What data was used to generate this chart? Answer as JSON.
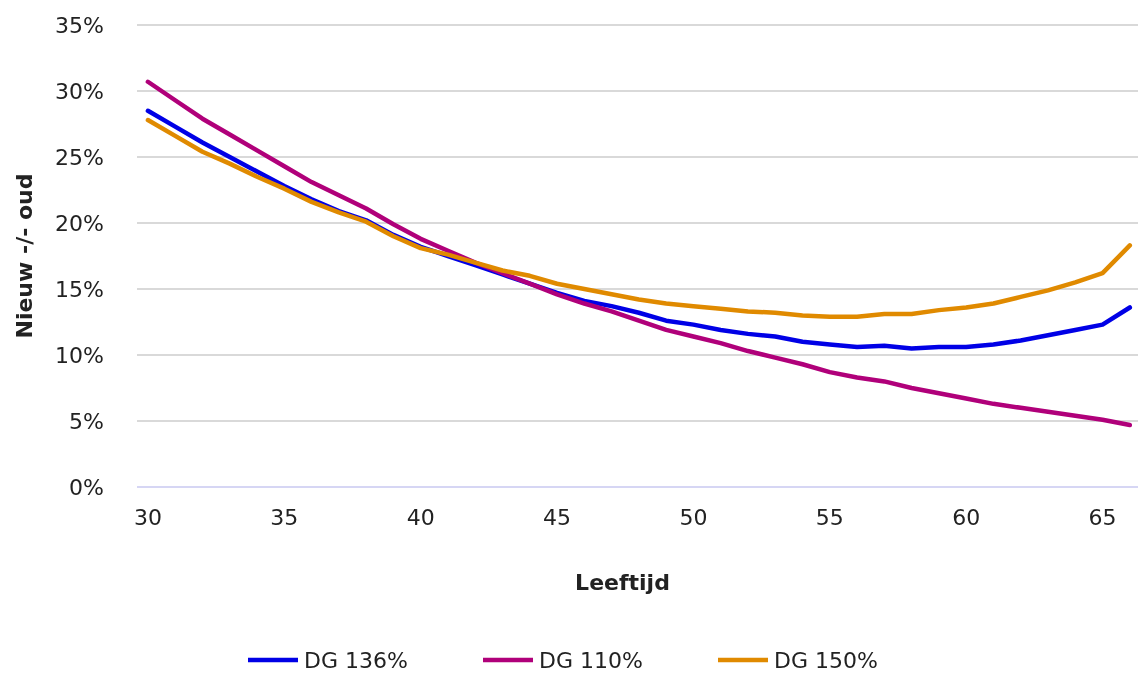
{
  "chart_data": {
    "type": "line",
    "xlabel": "Leeftijd",
    "ylabel": "Nieuw -/- oud",
    "x": [
      30,
      31,
      32,
      33,
      34,
      35,
      36,
      37,
      38,
      39,
      40,
      41,
      42,
      43,
      44,
      45,
      46,
      47,
      48,
      49,
      50,
      51,
      52,
      53,
      54,
      55,
      56,
      57,
      58,
      59,
      60,
      61,
      62,
      63,
      64,
      65,
      66
    ],
    "series": [
      {
        "name": "DG 136%",
        "color": "#0000e6",
        "values": [
          28.5,
          27.3,
          26.1,
          25.0,
          23.9,
          22.8,
          21.8,
          20.9,
          20.2,
          19.1,
          18.2,
          17.5,
          16.8,
          16.1,
          15.4,
          14.7,
          14.1,
          13.7,
          13.2,
          12.6,
          12.3,
          11.9,
          11.6,
          11.4,
          11.0,
          10.8,
          10.6,
          10.7,
          10.5,
          10.6,
          10.6,
          10.8,
          11.1,
          11.5,
          11.9,
          12.3,
          13.6
        ]
      },
      {
        "name": "DG 110%",
        "color": "#b0007a",
        "values": [
          30.7,
          29.3,
          27.9,
          26.7,
          25.5,
          24.3,
          23.1,
          22.1,
          21.1,
          19.9,
          18.8,
          17.9,
          17.0,
          16.2,
          15.4,
          14.6,
          13.9,
          13.3,
          12.6,
          11.9,
          11.4,
          10.9,
          10.3,
          9.8,
          9.3,
          8.7,
          8.3,
          8.0,
          7.5,
          7.1,
          6.7,
          6.3,
          6.0,
          5.7,
          5.4,
          5.1,
          4.7
        ]
      },
      {
        "name": "DG 150%",
        "color": "#e08a00",
        "values": [
          27.8,
          26.6,
          25.4,
          24.5,
          23.5,
          22.6,
          21.6,
          20.8,
          20.1,
          19.0,
          18.1,
          17.6,
          17.0,
          16.4,
          16.0,
          15.4,
          15.0,
          14.6,
          14.2,
          13.9,
          13.7,
          13.5,
          13.3,
          13.2,
          13.0,
          12.9,
          12.9,
          13.1,
          13.1,
          13.4,
          13.6,
          13.9,
          14.4,
          14.9,
          15.5,
          16.2,
          18.3
        ]
      }
    ],
    "xlim": [
      29.6,
      66.3
    ],
    "xticks": [
      30,
      35,
      40,
      45,
      50,
      55,
      60,
      65
    ],
    "ylim": [
      0,
      35
    ],
    "yticks": [
      {
        "value": 0,
        "label": "0%"
      },
      {
        "value": 5,
        "label": "5%"
      },
      {
        "value": 10,
        "label": "10%"
      },
      {
        "value": 15,
        "label": "15%"
      },
      {
        "value": 20,
        "label": "20%"
      },
      {
        "value": 25,
        "label": "25%"
      },
      {
        "value": 30,
        "label": "30%"
      },
      {
        "value": 35,
        "label": "35%"
      }
    ],
    "grid": "y",
    "legend": "bottom",
    "marker": "none",
    "line_style": "solid"
  }
}
